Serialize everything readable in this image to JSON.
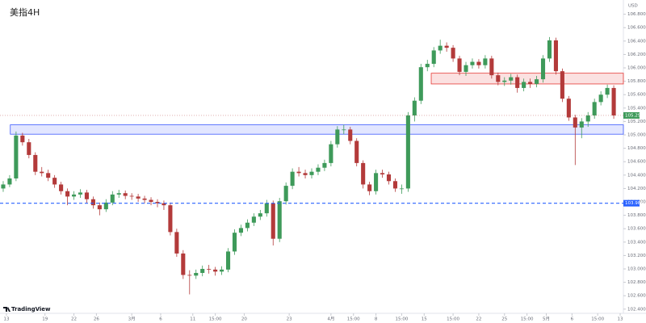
{
  "chart_data": {
    "type": "candlestick",
    "title": "美指4H",
    "currency": "USD",
    "brand": "TradingView",
    "up_color": "#3e9a5a",
    "down_color": "#b33a3a",
    "grid": false,
    "xlim": [
      -0.5,
      96.5
    ],
    "xticks": [
      {
        "value": 0.5,
        "label": "13"
      },
      {
        "value": 6.5,
        "label": "19"
      },
      {
        "value": 11,
        "label": "22"
      },
      {
        "value": 14.5,
        "label": "26"
      },
      {
        "value": 20,
        "label": "3月"
      },
      {
        "value": 24.5,
        "label": "6"
      },
      {
        "value": 29.5,
        "label": "11"
      },
      {
        "value": 33,
        "label": "15:00"
      },
      {
        "value": 37.5,
        "label": "20"
      },
      {
        "value": 44.5,
        "label": "23"
      },
      {
        "value": 51,
        "label": "4月"
      },
      {
        "value": 54.5,
        "label": "15:00"
      },
      {
        "value": 58,
        "label": "8"
      },
      {
        "value": 62,
        "label": "15:00"
      },
      {
        "value": 65.5,
        "label": "15"
      },
      {
        "value": 70,
        "label": "15:00"
      },
      {
        "value": 74,
        "label": "22"
      },
      {
        "value": 78,
        "label": "25"
      },
      {
        "value": 81.5,
        "label": "15:00"
      },
      {
        "value": 84.5,
        "label": "5月"
      },
      {
        "value": 88.5,
        "label": "6"
      },
      {
        "value": 92.5,
        "label": "15:00"
      },
      {
        "value": 96,
        "label": "13"
      }
    ],
    "ylim": [
      102.3375,
      107.0125
    ],
    "yticks": [
      {
        "value": 102.4,
        "label": "102.400"
      },
      {
        "value": 102.6,
        "label": "102.600"
      },
      {
        "value": 102.8,
        "label": "102.800"
      },
      {
        "value": 103.0,
        "label": "103.000"
      },
      {
        "value": 103.2,
        "label": "103.200"
      },
      {
        "value": 103.4,
        "label": "103.400"
      },
      {
        "value": 103.6,
        "label": "103.600"
      },
      {
        "value": 103.8,
        "label": "103.800"
      },
      {
        "value": 104.0,
        "label": "104.000"
      },
      {
        "value": 104.2,
        "label": "104.200"
      },
      {
        "value": 104.4,
        "label": "104.400"
      },
      {
        "value": 104.6,
        "label": "104.600"
      },
      {
        "value": 104.8,
        "label": "104.800"
      },
      {
        "value": 105.0,
        "label": "105.000"
      },
      {
        "value": 105.2,
        "label": "105.200"
      },
      {
        "value": 105.4,
        "label": "105.400"
      },
      {
        "value": 105.6,
        "label": "105.600"
      },
      {
        "value": 105.8,
        "label": "105.800"
      },
      {
        "value": 106.0,
        "label": "106.000"
      },
      {
        "value": 106.2,
        "label": "106.200"
      },
      {
        "value": 106.4,
        "label": "106.400"
      },
      {
        "value": 106.6,
        "label": "106.600"
      },
      {
        "value": 106.8,
        "label": "106.800"
      }
    ],
    "open": [
      104.2,
      104.26,
      104.35,
      104.99,
      104.89,
      104.7,
      104.45,
      104.43,
      104.36,
      104.26,
      104.16,
      104.08,
      104.11,
      104.14,
      104.04,
      103.95,
      103.89,
      103.99,
      104.11,
      104.13,
      104.09,
      104.08,
      104.05,
      104.03,
      104.0,
      103.98,
      103.95,
      103.55,
      103.23,
      102.91,
      102.9,
      102.94,
      103.0,
      102.99,
      102.96,
      102.99,
      103.26,
      103.54,
      103.61,
      103.69,
      103.78,
      103.83,
      103.98,
      103.45,
      104.01,
      104.24,
      104.45,
      104.43,
      104.4,
      104.45,
      104.51,
      104.58,
      104.86,
      105.08,
      105.08,
      104.91,
      104.58,
      104.26,
      104.16,
      104.43,
      104.41,
      104.31,
      104.2,
      104.2,
      105.29,
      105.51,
      106.01,
      106.06,
      106.26,
      106.33,
      106.3,
      106.14,
      105.94,
      106.04,
      106.09,
      106.04,
      106.14,
      105.89,
      105.79,
      105.81,
      105.86,
      105.7,
      105.79,
      105.76,
      105.83,
      106.14,
      106.41,
      105.95,
      105.54,
      105.26,
      105.11,
      105.2,
      105.29,
      105.49,
      105.6,
      105.7
    ],
    "high": [
      104.31,
      104.4,
      105.05,
      105.03,
      104.94,
      104.74,
      104.52,
      104.48,
      104.4,
      104.3,
      104.2,
      104.16,
      104.19,
      104.18,
      104.08,
      103.99,
      104.04,
      104.16,
      104.18,
      104.17,
      104.13,
      104.12,
      104.09,
      104.07,
      104.04,
      104.02,
      103.99,
      103.6,
      103.28,
      102.98,
      102.99,
      103.05,
      103.06,
      103.03,
      103.04,
      103.31,
      103.59,
      103.66,
      103.74,
      103.83,
      103.88,
      104.03,
      104.02,
      104.06,
      104.29,
      104.5,
      104.52,
      104.48,
      104.5,
      104.56,
      104.63,
      104.91,
      105.13,
      105.15,
      105.12,
      104.95,
      104.62,
      104.3,
      104.48,
      104.48,
      104.45,
      104.35,
      104.26,
      105.34,
      105.56,
      106.06,
      106.12,
      106.31,
      106.42,
      106.38,
      106.34,
      106.18,
      106.09,
      106.14,
      106.13,
      106.19,
      106.18,
      105.93,
      105.86,
      105.91,
      105.9,
      105.84,
      105.84,
      105.88,
      106.19,
      106.46,
      106.45,
      105.99,
      105.58,
      105.3,
      105.25,
      105.34,
      105.54,
      105.65,
      105.75,
      105.74
    ],
    "low": [
      104.15,
      104.22,
      104.31,
      104.84,
      104.65,
      104.4,
      104.38,
      104.31,
      104.21,
      104.11,
      103.95,
      104.03,
      104.06,
      103.98,
      103.9,
      103.8,
      103.85,
      103.95,
      104.06,
      104.04,
      104.03,
      104.0,
      103.98,
      103.95,
      103.92,
      103.88,
      103.5,
      103.18,
      102.85,
      102.62,
      102.85,
      102.89,
      102.93,
      102.9,
      102.91,
      102.95,
      103.21,
      103.49,
      103.56,
      103.64,
      103.73,
      103.78,
      103.35,
      103.4,
      103.96,
      104.19,
      104.38,
      104.35,
      104.35,
      104.4,
      104.46,
      104.53,
      104.81,
      105.01,
      104.86,
      104.53,
      104.2,
      104.1,
      104.11,
      104.36,
      104.26,
      104.15,
      104.12,
      104.15,
      105.2,
      105.46,
      105.95,
      106.01,
      106.21,
      106.24,
      106.09,
      105.89,
      105.88,
      105.99,
      105.99,
      105.99,
      105.84,
      105.74,
      105.73,
      105.75,
      105.63,
      105.65,
      105.7,
      105.71,
      105.78,
      106.09,
      105.9,
      105.49,
      105.21,
      104.55,
      104.95,
      105.12,
      105.24,
      105.44,
      105.55,
      105.24
    ],
    "close": [
      104.26,
      104.35,
      104.99,
      104.89,
      104.7,
      104.45,
      104.43,
      104.36,
      104.26,
      104.16,
      104.08,
      104.11,
      104.14,
      104.04,
      103.95,
      103.89,
      103.99,
      104.11,
      104.13,
      104.09,
      104.08,
      104.05,
      104.03,
      104.0,
      103.98,
      103.95,
      103.55,
      103.23,
      102.91,
      102.9,
      102.94,
      103.0,
      102.99,
      102.96,
      102.99,
      103.26,
      103.54,
      103.61,
      103.69,
      103.78,
      103.83,
      103.98,
      103.45,
      104.01,
      104.24,
      104.45,
      104.43,
      104.4,
      104.45,
      104.51,
      104.58,
      104.86,
      105.08,
      105.08,
      104.91,
      104.58,
      104.26,
      104.16,
      104.43,
      104.41,
      104.31,
      104.2,
      104.2,
      105.29,
      105.51,
      106.01,
      106.06,
      106.26,
      106.33,
      106.3,
      106.14,
      105.94,
      106.04,
      106.09,
      106.04,
      106.14,
      105.89,
      105.79,
      105.81,
      105.86,
      105.7,
      105.79,
      105.76,
      105.83,
      106.14,
      106.41,
      105.95,
      105.54,
      105.26,
      105.11,
      105.2,
      105.29,
      105.49,
      105.6,
      105.7,
      105.29
    ],
    "zones": [
      {
        "start": 1.1,
        "low": 105.01,
        "high": 105.15,
        "color": "#3d5afe"
      },
      {
        "start": 66.6,
        "low": 105.76,
        "high": 105.92,
        "color": "#e53935"
      }
    ],
    "level": {
      "value": 103.98,
      "label": "103.980",
      "color": "#2962ff"
    },
    "last_price": {
      "value": 105.29,
      "label": "105.290"
    }
  }
}
